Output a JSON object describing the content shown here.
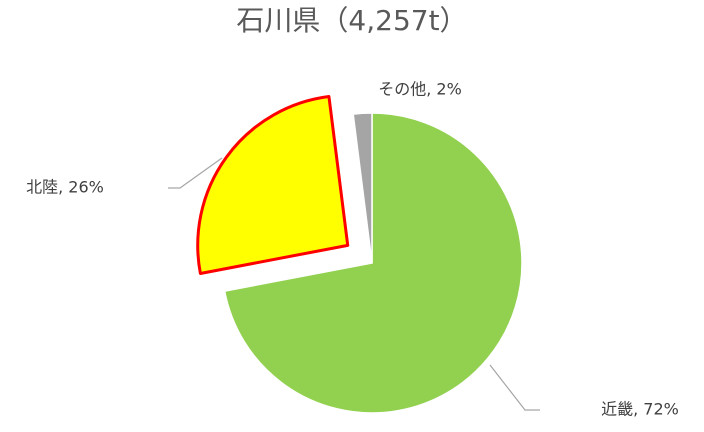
{
  "chart_data": {
    "type": "pie",
    "title": "石川県（4,257t）",
    "values": [
      72,
      26,
      2
    ],
    "value_labels": [
      "近畿, 72%",
      "北陸, 26%",
      "その他, 2%"
    ],
    "colors": [
      "#92d050",
      "#ffff00",
      "#a5a5a5"
    ],
    "edgecolors": [
      "#ffffff",
      "#ff0000",
      "#ffffff"
    ],
    "explode": [
      false,
      true,
      false
    ]
  }
}
